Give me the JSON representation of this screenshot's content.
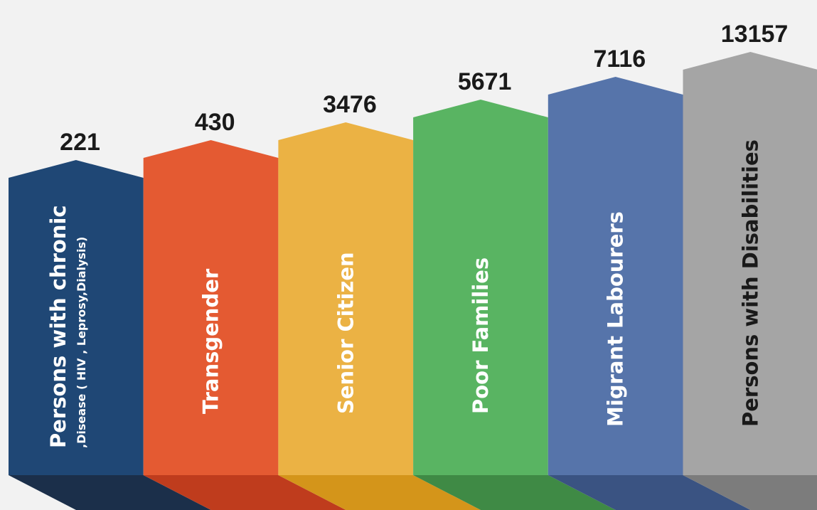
{
  "chart_data": {
    "type": "bar",
    "title": "",
    "xlabel": "",
    "ylabel": "",
    "categories": [
      "Persons with chronic",
      "Transgender",
      "Senior Citizen",
      "Poor Families",
      "Migrant Labourers",
      "Persons with Disabilities"
    ],
    "category_sublabels": [
      ",Disease ( HIV , Leprosy,Dialysis)",
      "",
      "",
      "",
      "",
      ""
    ],
    "values": [
      221,
      430,
      3476,
      5671,
      7116,
      13157
    ],
    "value_labels": [
      "221",
      "430",
      "3476",
      "5671",
      "7116",
      "13157"
    ],
    "colors": [
      "#1f4775",
      "#e45a32",
      "#ebb244",
      "#59b462",
      "#5674aa",
      "#a5a5a5"
    ],
    "shadow_colors": [
      "#1b2f4a",
      "#bf3c1d",
      "#d4951a",
      "#3f8a45",
      "#3a5382",
      "#7c7c7c"
    ],
    "label_colors": [
      "#ffffff",
      "#ffffff",
      "#ffffff",
      "#ffffff",
      "#ffffff",
      "#1a1a1a"
    ],
    "value_axis": "not shown (bars drawn as ascending steps)",
    "grid": false,
    "legend": "none"
  }
}
